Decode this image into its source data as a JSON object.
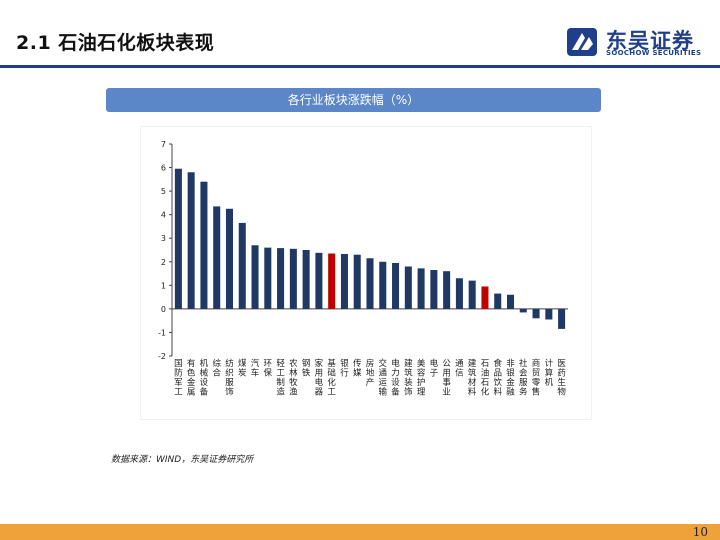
{
  "header": {
    "title": "2.1 石油石化板块表现",
    "logo_cn": "东吴证券",
    "logo_en": "SOOCHOW SECURITIES"
  },
  "chart_data": {
    "type": "bar",
    "title": "各行业板块涨跌幅（%）",
    "xlabel": "",
    "ylabel": "",
    "ylim": [
      -2,
      7
    ],
    "yticks": [
      7,
      6,
      5,
      4,
      3,
      2,
      1,
      0,
      -1,
      -2
    ],
    "categories": [
      "国防军工",
      "有色金属",
      "机械设备",
      "综合",
      "纺织服饰",
      "煤炭",
      "汽车",
      "环保",
      "轻工制造",
      "农林牧渔",
      "钢铁",
      "家用电器",
      "基础化工",
      "银行",
      "传媒",
      "房地产",
      "交通运输",
      "电力设备",
      "建筑装饰",
      "美容护理",
      "电子",
      "公用事业",
      "通信",
      "建筑材料",
      "石油石化",
      "食品饮料",
      "非银金融",
      "社会服务",
      "商贸零售",
      "计算机",
      "医药生物"
    ],
    "values": [
      5.95,
      5.8,
      5.4,
      4.35,
      4.25,
      3.65,
      2.7,
      2.6,
      2.58,
      2.55,
      2.5,
      2.38,
      2.35,
      2.33,
      2.3,
      2.15,
      2.0,
      1.95,
      1.8,
      1.72,
      1.65,
      1.6,
      1.3,
      1.2,
      0.95,
      0.65,
      0.6,
      -0.15,
      -0.4,
      -0.45,
      -0.85
    ],
    "bar_color": "#1f3864",
    "highlight_colors": {
      "基础化工": "#c00000",
      "石油石化": "#c00000"
    }
  },
  "source": "数据来源：WIND，东吴证券研究所",
  "page_number": "10"
}
